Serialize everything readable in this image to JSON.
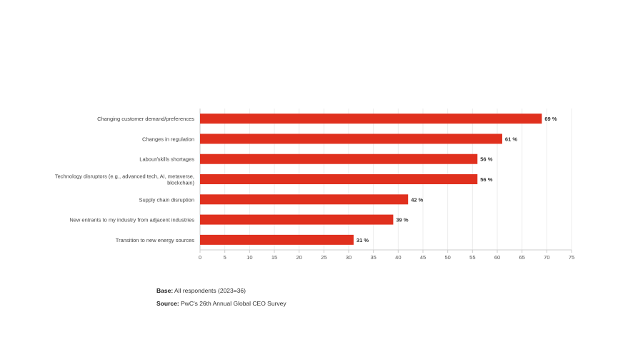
{
  "chart_data": {
    "type": "bar",
    "orientation": "horizontal",
    "categories": [
      "Changing customer demand/preferences",
      "Changes in regulation",
      "Labour/skills shortages",
      "Technology disruptors (e.g., advanced tech, AI, metaverse, blockchain)",
      "Supply chain disruption",
      "New entrants to my industry from adjacent industries",
      "Transition to new energy sources"
    ],
    "category_lines": [
      [
        "Changing customer demand/preferences"
      ],
      [
        "Changes in regulation"
      ],
      [
        "Labour/skills shortages"
      ],
      [
        "Technology disruptors (e.g., advanced tech, AI, metaverse,",
        "blockchain)"
      ],
      [
        "Supply chain disruption"
      ],
      [
        "New entrants to my industry from adjacent industries"
      ],
      [
        "Transition to new energy sources"
      ]
    ],
    "values": [
      69,
      61,
      56,
      56,
      42,
      39,
      31
    ],
    "value_labels": [
      "69 %",
      "61 %",
      "56 %",
      "56 %",
      "42 %",
      "39 %",
      "31 %"
    ],
    "xlim": [
      0,
      75
    ],
    "xticks": [
      0,
      5,
      10,
      15,
      20,
      25,
      30,
      35,
      40,
      45,
      50,
      55,
      60,
      65,
      70,
      75
    ],
    "grid": true,
    "bar_color": "#e0301e",
    "title": "",
    "xlabel": "",
    "ylabel": ""
  },
  "footnotes": {
    "base_label": "Base:",
    "base_text": " All respondents (2023=36)",
    "source_label": "Source:",
    "source_text": " PwC's 26th Annual Global CEO Survey"
  }
}
